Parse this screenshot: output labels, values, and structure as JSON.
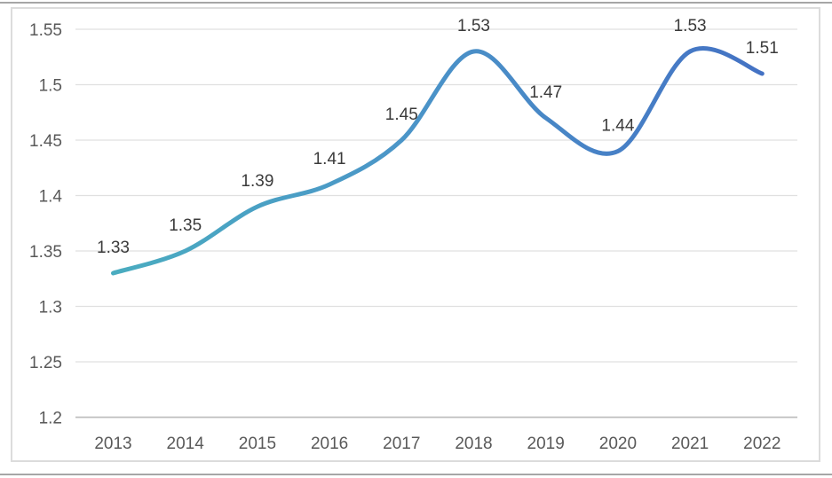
{
  "page": {
    "background": "#ffffff",
    "top_rule_color": "#a6a6a6",
    "bottom_rule_color": "#a6a6a6",
    "chart_border_color": "#dcdcdc"
  },
  "chart_data": {
    "type": "line",
    "title": "",
    "xlabel": "",
    "ylabel": "",
    "categories": [
      "2013",
      "2014",
      "2015",
      "2016",
      "2017",
      "2018",
      "2019",
      "2020",
      "2021",
      "2022"
    ],
    "series": [
      {
        "name": "series-1",
        "values": [
          1.33,
          1.35,
          1.39,
          1.41,
          1.45,
          1.53,
          1.47,
          1.44,
          1.53,
          1.51
        ]
      }
    ],
    "data_labels": [
      "1.33",
      "1.35",
      "1.39",
      "1.41",
      "1.45",
      "1.53",
      "1.47",
      "1.44",
      "1.53",
      "1.51"
    ],
    "yticks": [
      1.55,
      1.5,
      1.45,
      1.4,
      1.35,
      1.3,
      1.25,
      1.2
    ],
    "ytick_labels": [
      "1.55",
      "1.5",
      "1.45",
      "1.4",
      "1.35",
      "1.3",
      "1.25",
      "1.2"
    ],
    "ylim": [
      1.2,
      1.55
    ],
    "smooth": true,
    "grid": "horizontal",
    "legend": "none",
    "markers": "none",
    "line_gradient": [
      "#4aacc0",
      "#4b95c8",
      "#4472c4"
    ],
    "line_width": 5,
    "label_color": "#3b3b3b",
    "tick_color": "#595959",
    "gridline_color": "#e0e0e0",
    "axis_line_color": "#bfbfbf",
    "label_font_size": 19,
    "tick_font_size": 19
  }
}
